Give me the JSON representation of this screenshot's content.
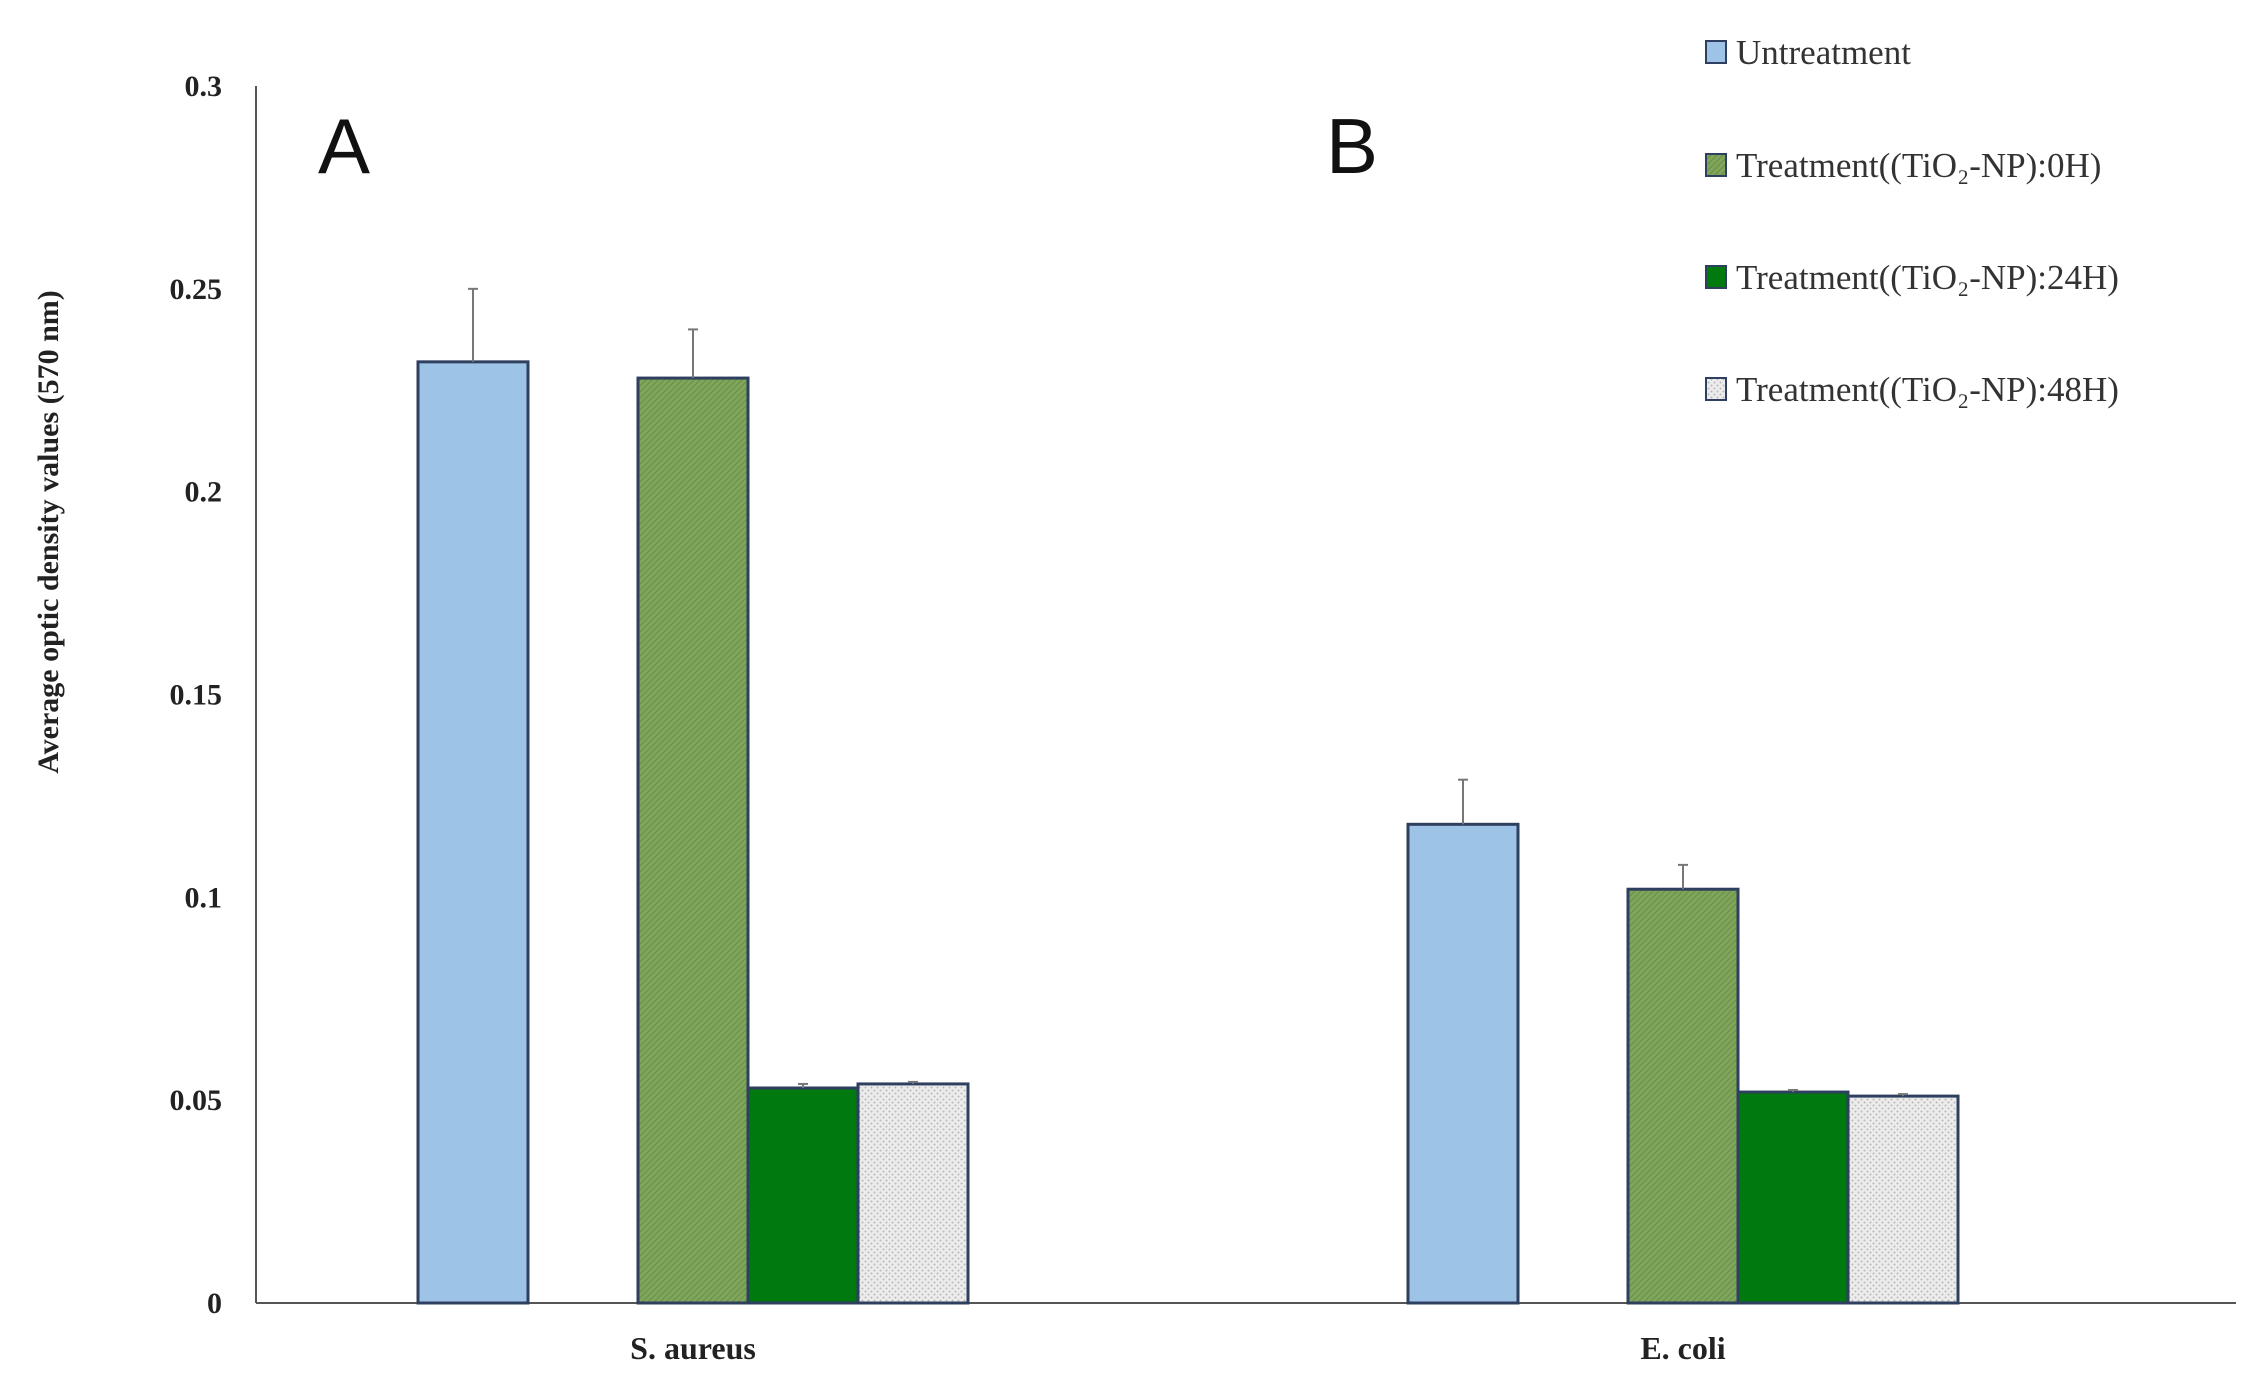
{
  "chart_data": {
    "type": "bar",
    "title": "",
    "xlabel": "",
    "ylabel": "Average optic density values (570 nm)",
    "ylim": [
      0,
      0.3
    ],
    "yticks": [
      "0",
      "0.05",
      "0.1",
      "0.15",
      "0.2",
      "0.25",
      "0.3"
    ],
    "grid": false,
    "legend_position": "top-right",
    "categories": [
      "S. aureus",
      "E. coli"
    ],
    "panel_labels": [
      "A",
      "B"
    ],
    "series": [
      {
        "name": "Untreatment",
        "values": [
          0.232,
          0.118
        ],
        "errors": [
          0.018,
          0.011
        ],
        "color": "#9dc3e6",
        "pattern": "solid"
      },
      {
        "name": "Treatment((TiO₂-NP):0H)",
        "values": [
          0.228,
          0.102
        ],
        "errors": [
          0.012,
          0.006
        ],
        "color": "#7fa65b",
        "pattern": "diagonal"
      },
      {
        "name": "Treatment((TiO₂-NP):24H)",
        "values": [
          0.053,
          0.052
        ],
        "errors": [
          0.001,
          0.0005
        ],
        "color": "#007a0f",
        "pattern": "solid"
      },
      {
        "name": "Treatment((TiO₂-NP):48H)",
        "values": [
          0.054,
          0.051
        ],
        "errors": [
          0.0005,
          0.0005
        ],
        "color": "#e4e4e4",
        "pattern": "dotted"
      }
    ]
  }
}
